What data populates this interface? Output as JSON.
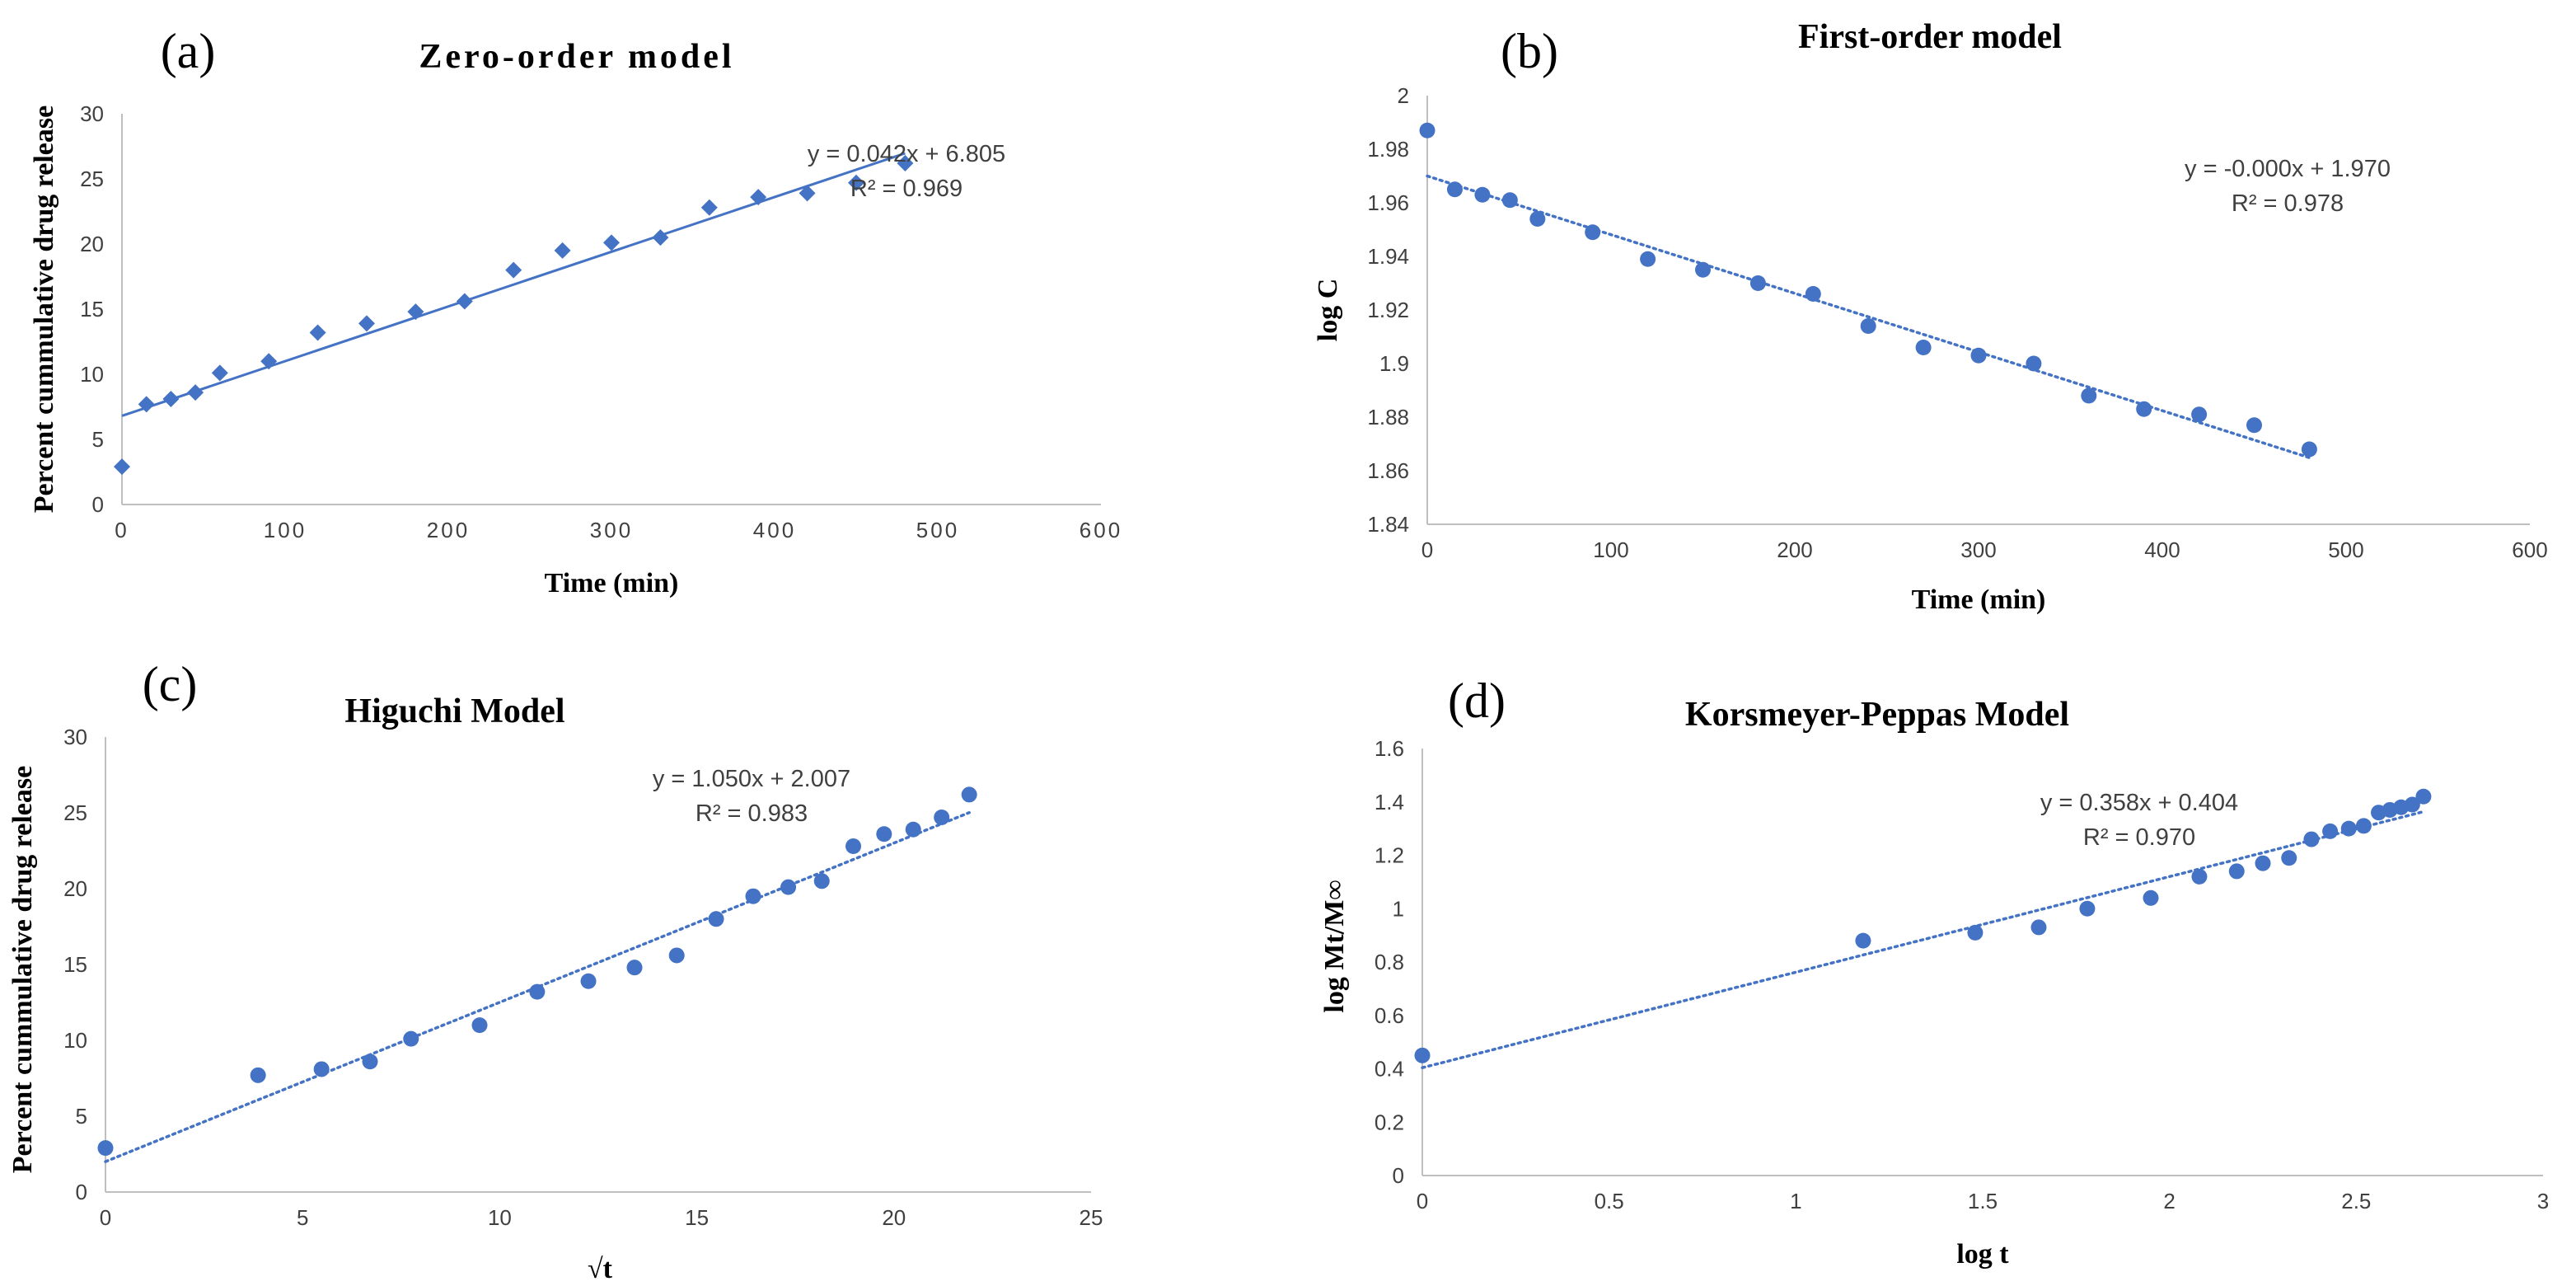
{
  "figure": {
    "series_color": "#4472C4",
    "axis_color": "#BFBFBF",
    "text_color": "#404040"
  },
  "chart_data": [
    {
      "id": "a",
      "panel_label": "(a)",
      "type": "scatter",
      "title": "Zero-order model",
      "xlabel": "Time (min)",
      "ylabel": "Percent cummulative drug release",
      "xlim": [
        0,
        600
      ],
      "ylim": [
        0,
        30
      ],
      "xticks": [
        0,
        100,
        200,
        300,
        400,
        500,
        600
      ],
      "xtick_labels": [
        "0",
        "100",
        "200",
        "300",
        "400",
        "500",
        "600"
      ],
      "yticks": [
        0,
        5,
        10,
        15,
        20,
        25,
        30
      ],
      "ytick_labels": [
        "0",
        "5",
        "10",
        "15",
        "20",
        "25",
        "30"
      ],
      "marker": "diamond",
      "x": [
        0,
        15,
        30,
        45,
        60,
        90,
        120,
        150,
        180,
        210,
        240,
        270,
        300,
        330,
        360,
        390,
        420,
        450,
        480
      ],
      "y": [
        2.9,
        7.7,
        8.1,
        8.6,
        10.1,
        11.0,
        13.2,
        13.9,
        14.8,
        15.6,
        18.0,
        19.5,
        20.1,
        20.5,
        22.8,
        23.6,
        23.9,
        24.7,
        26.2
      ],
      "trendline": {
        "style": "solid",
        "slope": 0.042,
        "intercept": 6.805,
        "x_range": [
          0,
          480
        ]
      },
      "equation": "y = 0.042x + 6.805",
      "r_squared": "R² = 0.969"
    },
    {
      "id": "b",
      "panel_label": "(b)",
      "type": "scatter",
      "title": "First-order model",
      "xlabel": "Time (min)",
      "ylabel": "log C",
      "xlim": [
        0,
        600
      ],
      "ylim": [
        1.84,
        2.0
      ],
      "xticks": [
        0,
        100,
        200,
        300,
        400,
        500,
        600
      ],
      "xtick_labels": [
        "0",
        "100",
        "200",
        "300",
        "400",
        "500",
        "600"
      ],
      "yticks": [
        1.84,
        1.86,
        1.88,
        1.9,
        1.92,
        1.94,
        1.96,
        1.98,
        2.0
      ],
      "ytick_labels": [
        "1.84",
        "1.86",
        "1.88",
        "1.9",
        "1.92",
        "1.94",
        "1.96",
        "1.98",
        "2"
      ],
      "marker": "circle",
      "x": [
        0,
        15,
        30,
        45,
        60,
        90,
        120,
        150,
        180,
        210,
        240,
        270,
        300,
        330,
        360,
        390,
        420,
        450,
        480
      ],
      "y": [
        1.987,
        1.965,
        1.963,
        1.961,
        1.954,
        1.949,
        1.939,
        1.935,
        1.93,
        1.926,
        1.914,
        1.906,
        1.903,
        1.9,
        1.888,
        1.883,
        1.881,
        1.877,
        1.868
      ],
      "trendline": {
        "style": "dotted",
        "slope": -0.000219,
        "intercept": 1.97,
        "x_range": [
          0,
          480
        ]
      },
      "equation": "y = -0.000x + 1.970",
      "r_squared": "R² = 0.978"
    },
    {
      "id": "c",
      "panel_label": "(c)",
      "type": "scatter",
      "title": "Higuchi Model",
      "xlabel": "√t",
      "ylabel": "Percent cummulative drug release",
      "xlim": [
        0,
        25
      ],
      "ylim": [
        0,
        30
      ],
      "xticks": [
        0,
        5,
        10,
        15,
        20,
        25
      ],
      "xtick_labels": [
        "0",
        "5",
        "10",
        "15",
        "20",
        "25"
      ],
      "yticks": [
        0,
        5,
        10,
        15,
        20,
        25,
        30
      ],
      "ytick_labels": [
        "0",
        "5",
        "10",
        "15",
        "20",
        "25",
        "30"
      ],
      "marker": "circle",
      "x": [
        0,
        3.87,
        5.48,
        6.71,
        7.75,
        9.49,
        10.95,
        12.25,
        13.42,
        14.49,
        15.49,
        16.43,
        17.32,
        18.17,
        18.97,
        19.75,
        20.49,
        21.21,
        21.91
      ],
      "y": [
        2.9,
        7.7,
        8.1,
        8.6,
        10.1,
        11.0,
        13.2,
        13.9,
        14.8,
        15.6,
        18.0,
        19.5,
        20.1,
        20.5,
        22.8,
        23.6,
        23.9,
        24.7,
        26.2
      ],
      "trendline": {
        "style": "dotted",
        "slope": 1.05,
        "intercept": 2.007,
        "x_range": [
          0,
          21.91
        ]
      },
      "equation": "y = 1.050x + 2.007",
      "r_squared": "R² = 0.983"
    },
    {
      "id": "d",
      "panel_label": "(d)",
      "type": "scatter",
      "title": "Korsmeyer-Peppas Model",
      "xlabel": "log t",
      "ylabel": "log Mt/M∞",
      "xlim": [
        0,
        3
      ],
      "ylim": [
        0,
        1.6
      ],
      "xticks": [
        0,
        0.5,
        1,
        1.5,
        2,
        2.5,
        3
      ],
      "xtick_labels": [
        "0",
        "0.5",
        "1",
        "1.5",
        "2",
        "2.5",
        "3"
      ],
      "yticks": [
        0,
        0.2,
        0.4,
        0.6,
        0.8,
        1.0,
        1.2,
        1.4,
        1.6
      ],
      "ytick_labels": [
        "0",
        "0.2",
        "0.4",
        "0.6",
        "0.8",
        "1",
        "1.2",
        "1.4",
        "1.6"
      ],
      "marker": "circle",
      "x": [
        0,
        1.18,
        1.48,
        1.65,
        1.78,
        1.95,
        2.08,
        2.18,
        2.25,
        2.32,
        2.38,
        2.43,
        2.48,
        2.52,
        2.56,
        2.59,
        2.62,
        2.65,
        2.68
      ],
      "y": [
        0.45,
        0.88,
        0.91,
        0.93,
        1.0,
        1.04,
        1.12,
        1.14,
        1.17,
        1.19,
        1.26,
        1.29,
        1.3,
        1.31,
        1.36,
        1.37,
        1.38,
        1.39,
        1.42
      ],
      "trendline": {
        "style": "dotted",
        "slope": 0.358,
        "intercept": 0.404,
        "x_range": [
          0,
          2.68
        ]
      },
      "equation": "y = 0.358x + 0.404",
      "r_squared": "R² = 0.970"
    }
  ]
}
